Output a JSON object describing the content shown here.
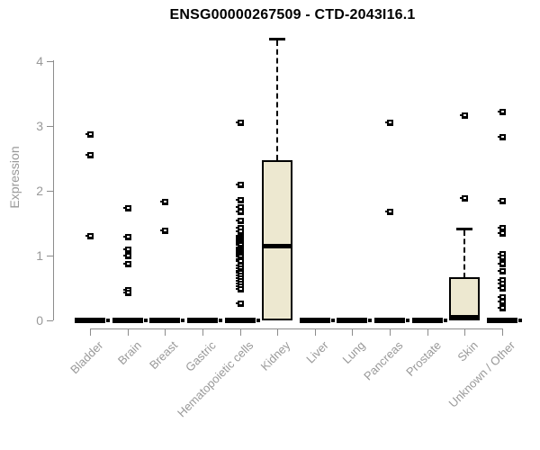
{
  "chart_data": {
    "type": "boxplot",
    "title": "ENSG00000267509 - CTD-2043I16.1",
    "ylabel": "Expression",
    "xlabel": "",
    "ylim": [
      0,
      4.4
    ],
    "yticks": [
      0,
      1,
      2,
      3,
      4
    ],
    "grid": false,
    "legend": "none",
    "box_fill_color": "#EDE8D0",
    "box_border_color": "#000000",
    "axis_color": "#8c8c8c",
    "label_color": "#999999",
    "categories": [
      "Bladder",
      "Brain",
      "Breast",
      "Gastric",
      "Hematopoietic cells",
      "Kidney",
      "Liver",
      "Lung",
      "Pancreas",
      "Prostate",
      "Skin",
      "Unknown / Other"
    ],
    "boxes": [
      {
        "category": "Bladder",
        "q1": 0,
        "median": 0,
        "q3": 0,
        "whisker_low": 0,
        "whisker_high": 0,
        "outliers": [
          2.88,
          2.55,
          1.31
        ]
      },
      {
        "category": "Brain",
        "q1": 0,
        "median": 0,
        "q3": 0,
        "whisker_low": 0,
        "whisker_high": 0,
        "outliers": [
          1.74,
          1.29,
          1.1,
          1.0,
          0.87,
          0.47,
          0.43
        ]
      },
      {
        "category": "Breast",
        "q1": 0,
        "median": 0,
        "q3": 0,
        "whisker_low": 0,
        "whisker_high": 0,
        "outliers": [
          1.84,
          1.39
        ]
      },
      {
        "category": "Gastric",
        "q1": 0,
        "median": 0,
        "q3": 0,
        "whisker_low": 0,
        "whisker_high": 0,
        "outliers": []
      },
      {
        "category": "Hematopoietic cells",
        "q1": 0,
        "median": 0,
        "q3": 0,
        "whisker_low": 0,
        "whisker_high": 0,
        "outliers": [
          3.05,
          2.1,
          1.86,
          1.75,
          1.68,
          1.54,
          1.43,
          1.38,
          1.31,
          1.28,
          1.25,
          1.22,
          1.19,
          1.16,
          1.13,
          1.1,
          1.07,
          1.04,
          1.01,
          0.98,
          0.95,
          0.92,
          0.85,
          0.81,
          0.77,
          0.73,
          0.69,
          0.65,
          0.61,
          0.57,
          0.53,
          0.49,
          0.26
        ]
      },
      {
        "category": "Kidney",
        "q1": 0,
        "median": 1.14,
        "q3": 2.47,
        "whisker_low": 0,
        "whisker_high": 4.35,
        "outliers": []
      },
      {
        "category": "Liver",
        "q1": 0,
        "median": 0,
        "q3": 0,
        "whisker_low": 0,
        "whisker_high": 0,
        "outliers": []
      },
      {
        "category": "Lung",
        "q1": 0,
        "median": 0,
        "q3": 0,
        "whisker_low": 0,
        "whisker_high": 0,
        "outliers": []
      },
      {
        "category": "Pancreas",
        "q1": 0,
        "median": 0,
        "q3": 0,
        "whisker_low": 0,
        "whisker_high": 0,
        "outliers": [
          3.05,
          1.68
        ]
      },
      {
        "category": "Prostate",
        "q1": 0,
        "median": 0,
        "q3": 0,
        "whisker_low": 0,
        "whisker_high": 0,
        "outliers": []
      },
      {
        "category": "Skin",
        "q1": 0,
        "median": 0,
        "q3": 0.66,
        "whisker_low": 0,
        "whisker_high": 1.42,
        "outliers": [
          3.17,
          1.89
        ]
      },
      {
        "category": "Unknown / Other",
        "q1": 0,
        "median": 0,
        "q3": 0,
        "whisker_low": 0,
        "whisker_high": 0,
        "outliers": [
          3.22,
          2.83,
          1.85,
          1.43,
          1.35,
          1.03,
          0.97,
          0.87,
          0.76,
          0.62,
          0.57,
          0.5,
          0.36,
          0.29,
          0.19
        ]
      }
    ]
  }
}
